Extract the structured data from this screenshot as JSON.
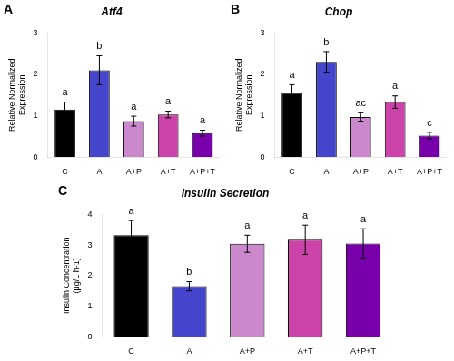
{
  "chart_data": [
    {
      "type": "bar",
      "panel_label": "A",
      "title": "Atf4",
      "categories": [
        "C",
        "A",
        "A+P",
        "A+T",
        "A+P+T"
      ],
      "values": [
        1.15,
        2.1,
        0.87,
        1.03,
        0.58
      ],
      "errors": [
        0.18,
        0.35,
        0.12,
        0.08,
        0.07
      ],
      "colors": [
        "#000000",
        "#4444cc",
        "#cc88cc",
        "#cc44aa",
        "#7700aa"
      ],
      "letters": [
        "a",
        "b",
        "a",
        "a",
        "a"
      ],
      "ylabel": "Relative Normalized\nExpression",
      "ylim": [
        0,
        3
      ],
      "yticks": [
        0,
        1,
        2,
        3
      ],
      "grid": false
    },
    {
      "type": "bar",
      "panel_label": "B",
      "title": "Chop",
      "categories": [
        "C",
        "A",
        "A+P",
        "A+T",
        "A+P+T"
      ],
      "values": [
        1.55,
        2.3,
        0.97,
        1.33,
        0.52
      ],
      "errors": [
        0.2,
        0.25,
        0.1,
        0.15,
        0.08
      ],
      "colors": [
        "#000000",
        "#4444cc",
        "#cc88cc",
        "#cc44aa",
        "#7700aa"
      ],
      "letters": [
        "a",
        "b",
        "ac",
        "a",
        "c"
      ],
      "ylabel": "Relative Normalized\nExpression",
      "ylim": [
        0,
        3
      ],
      "yticks": [
        0,
        1,
        2,
        3
      ],
      "grid": false
    },
    {
      "type": "bar",
      "panel_label": "C",
      "title": "Insulin Secretion",
      "categories": [
        "C",
        "A",
        "A+P",
        "A+T",
        "A+P+T"
      ],
      "values": [
        3.32,
        1.65,
        3.04,
        3.17,
        3.05
      ],
      "errors": [
        0.48,
        0.15,
        0.28,
        0.48,
        0.48
      ],
      "colors": [
        "#000000",
        "#4444cc",
        "#cc88cc",
        "#cc44aa",
        "#7700aa"
      ],
      "letters": [
        "a",
        "b",
        "a",
        "a",
        "a"
      ],
      "ylabel": "Insulin Concentration\n(μg/L h-1)",
      "ylim": [
        0,
        4
      ],
      "yticks": [
        0,
        1,
        2,
        3,
        4
      ],
      "grid": false
    }
  ]
}
